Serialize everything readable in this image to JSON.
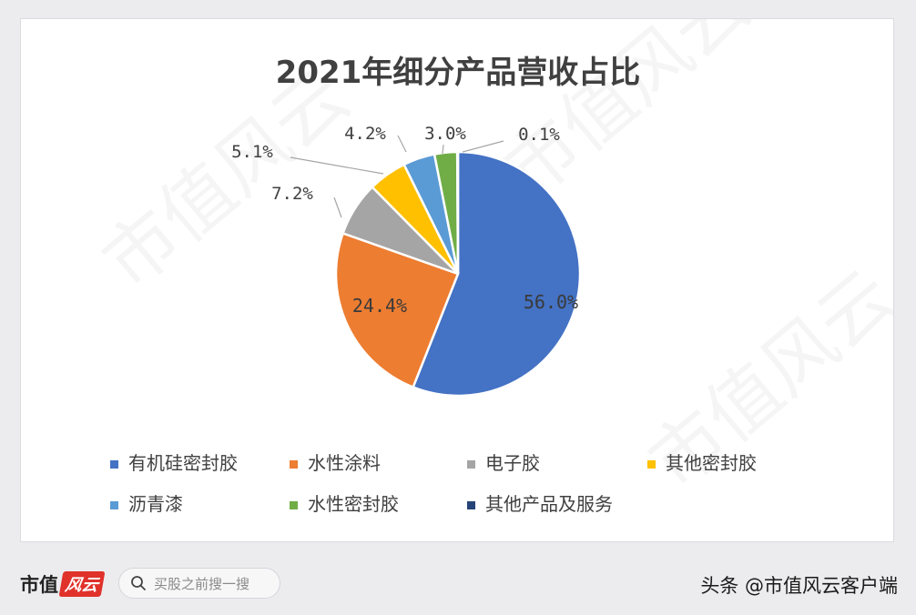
{
  "chart_data": {
    "type": "pie",
    "title": "2021年细分产品营收占比",
    "categories": [
      "有机硅密封胶",
      "水性涂料",
      "电子胶",
      "其他密封胶",
      "沥青漆",
      "水性密封胶",
      "其他产品及服务"
    ],
    "values": [
      56.0,
      24.4,
      7.2,
      5.1,
      4.2,
      3.0,
      0.1
    ],
    "labels": [
      "56.0%",
      "24.4%",
      "7.2%",
      "5.1%",
      "4.2%",
      "3.0%",
      "0.1%"
    ],
    "colors": [
      "#4472c4",
      "#ed7d31",
      "#a5a5a5",
      "#ffc000",
      "#5b9bd5",
      "#70ad47",
      "#264478"
    ],
    "legend_position": "bottom",
    "start_angle_deg": 0,
    "direction": "clockwise"
  },
  "footer": {
    "brand_text": "市值",
    "brand_badge": "风云",
    "search_icon": "search-icon",
    "search_placeholder": "买股之前搜一搜",
    "source_credit": "头条 @市值风云客户端"
  },
  "watermark": {
    "text": "市值风云"
  }
}
